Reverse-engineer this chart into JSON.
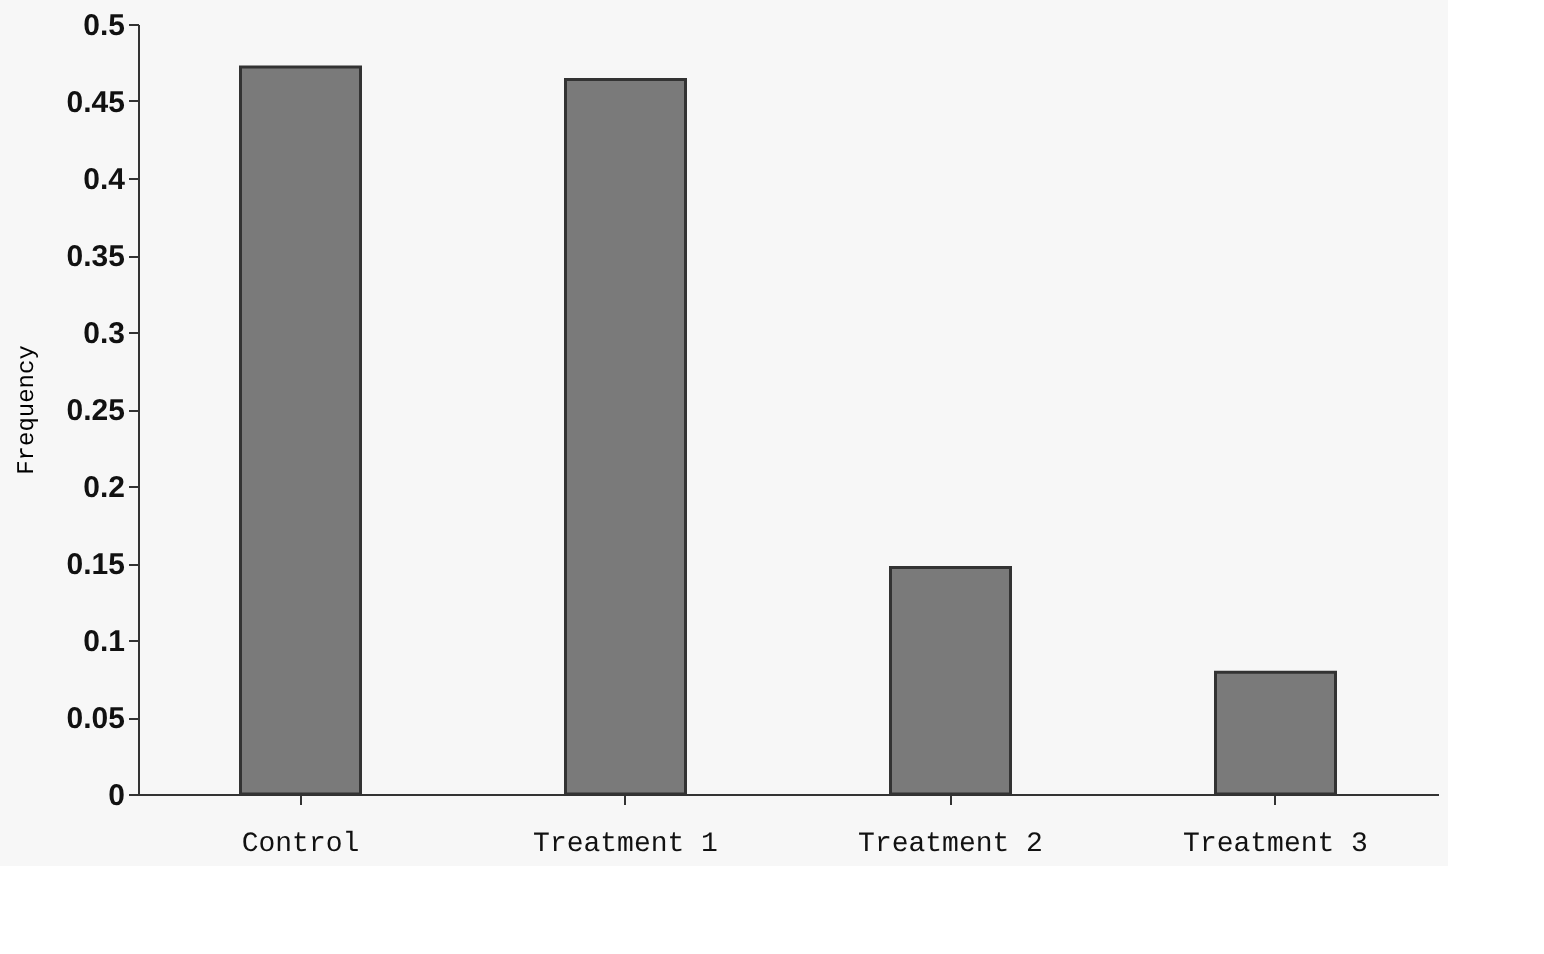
{
  "chart_data": {
    "type": "bar",
    "ylabel": "Frequency",
    "categories": [
      "Control",
      "Treatment 1",
      "Treatment 2",
      "Treatment 3"
    ],
    "values": [
      0.472,
      0.464,
      0.147,
      0.079
    ],
    "color": "#7a7a7a",
    "ylim": [
      0,
      0.5
    ],
    "yticks": [
      0,
      0.05,
      0.1,
      0.15,
      0.2,
      0.25,
      0.3,
      0.35,
      0.4,
      0.45,
      0.5
    ],
    "grid": false
  }
}
